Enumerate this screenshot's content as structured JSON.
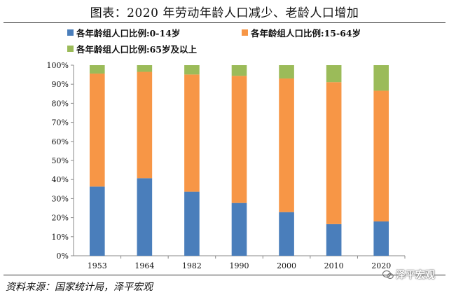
{
  "title": "图表：2020 年劳动年龄人口减少、老龄人口增加",
  "source": "资料来源：国家统计局，泽平宏观",
  "watermark": "泽平宏观",
  "chart_data": {
    "type": "bar",
    "stacked": true,
    "percent": true,
    "categories": [
      "1953",
      "1964",
      "1982",
      "1990",
      "2000",
      "2010",
      "2020"
    ],
    "series": [
      {
        "name": "各年龄组人口比例:0-14岁",
        "color": "#4a7ebb",
        "values": [
          36.3,
          40.7,
          33.6,
          27.7,
          22.9,
          16.6,
          18.0
        ]
      },
      {
        "name": "各年龄组人口比例:15-64岁",
        "color": "#f79646",
        "values": [
          59.3,
          55.8,
          61.5,
          66.7,
          70.1,
          74.5,
          68.6
        ]
      },
      {
        "name": "各年龄组人口比例:65岁及以上",
        "color": "#9bbb59",
        "values": [
          4.4,
          3.5,
          4.9,
          5.6,
          7.0,
          8.9,
          13.4
        ]
      }
    ],
    "ylim": [
      0,
      100
    ],
    "yticks": [
      "0%",
      "10%",
      "20%",
      "30%",
      "40%",
      "50%",
      "60%",
      "70%",
      "80%",
      "90%",
      "100%"
    ],
    "grid": false,
    "legend": "top-left"
  }
}
